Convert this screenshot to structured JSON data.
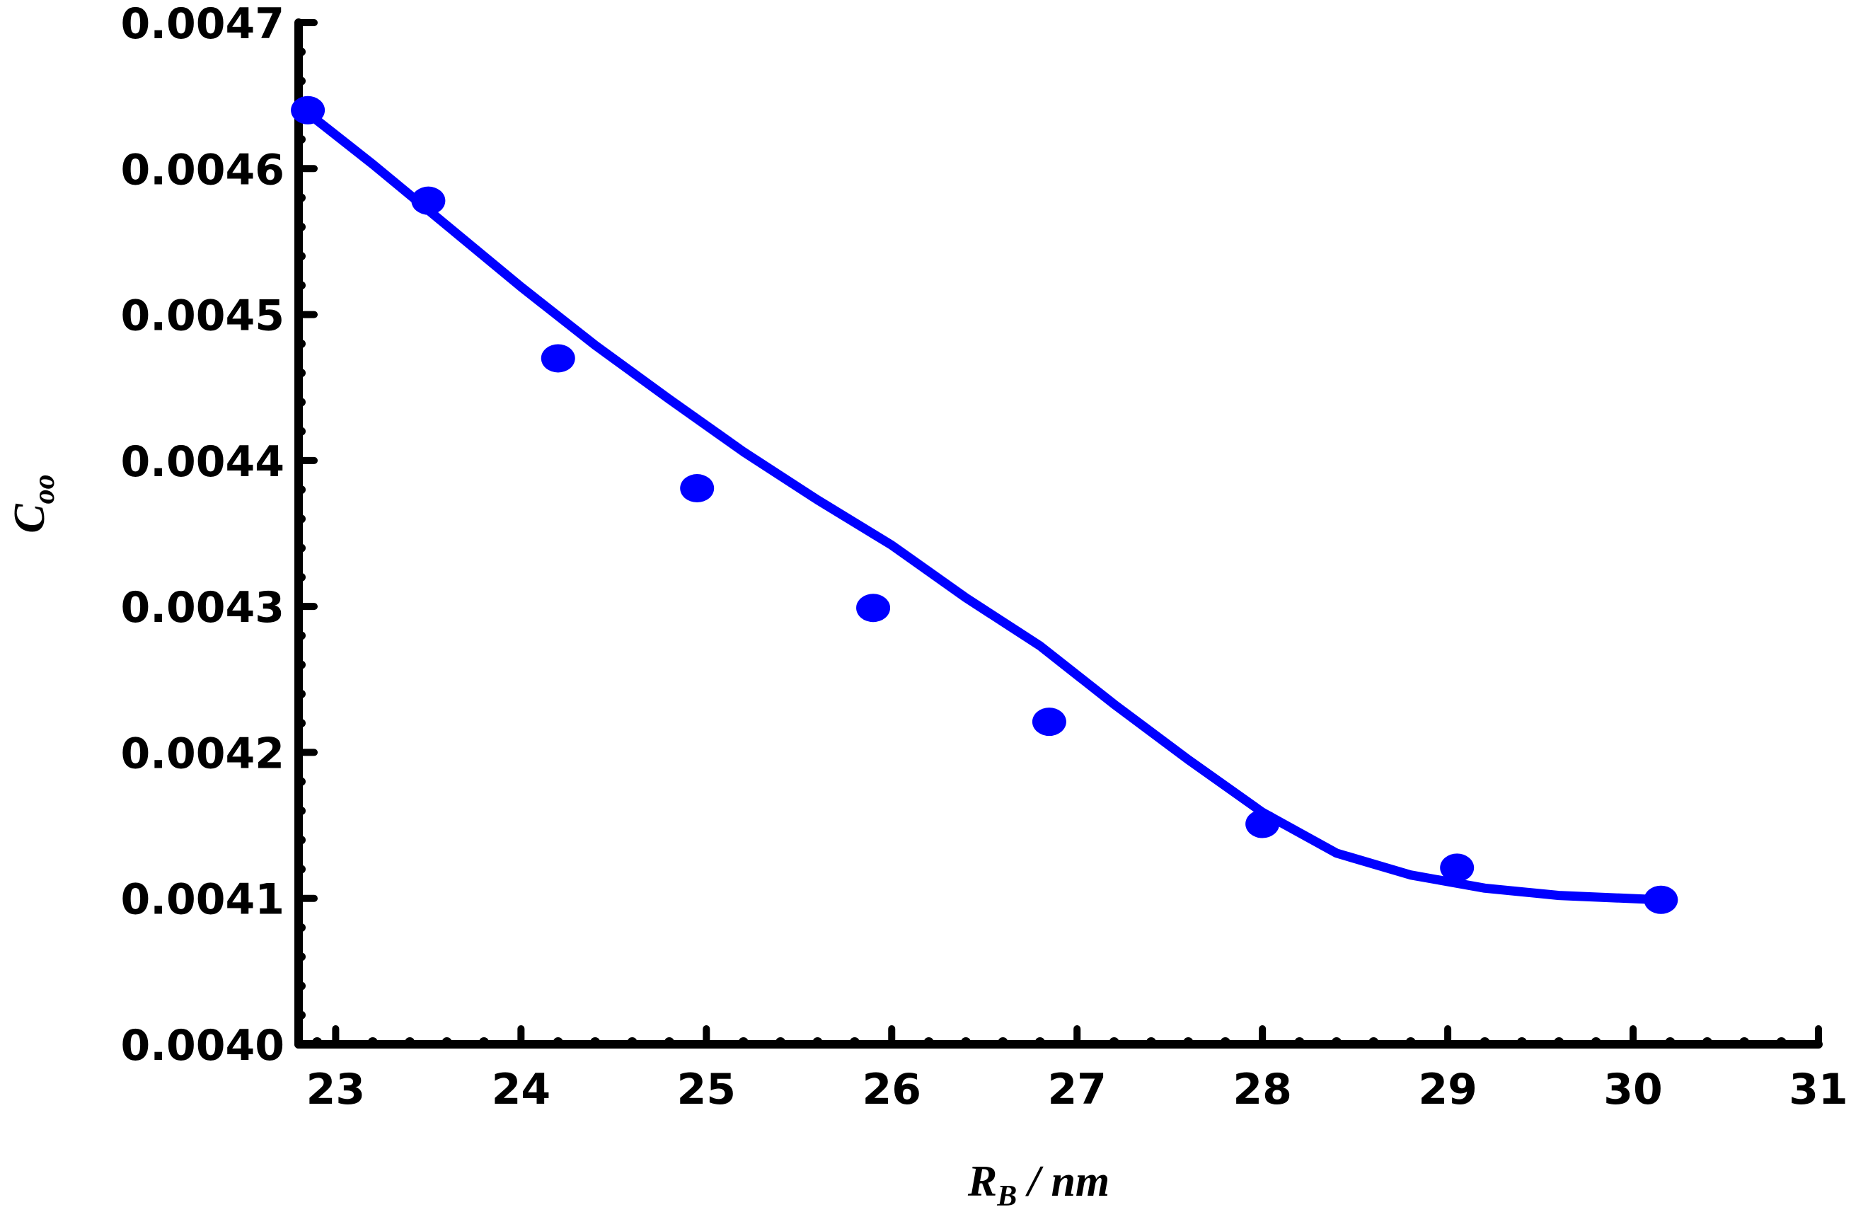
{
  "chart_data": {
    "type": "scatter",
    "title": "",
    "xlabel": {
      "symbol": "R",
      "subscript": "B",
      "unit": " / nm"
    },
    "ylabel": {
      "symbol": "C",
      "subscript": "oo"
    },
    "xlim": [
      22.8,
      31
    ],
    "ylim": [
      0.004,
      0.0047
    ],
    "xticks": [
      "23",
      "24",
      "25",
      "26",
      "27",
      "28",
      "29",
      "30",
      "31"
    ],
    "yticks": [
      "0.0040",
      "0.0041",
      "0.0042",
      "0.0043",
      "0.0044",
      "0.0045",
      "0.0046",
      "0.0047"
    ],
    "grid": false,
    "legend": "none",
    "series": [
      {
        "marker": "circle",
        "color": "#0000ff",
        "x": [
          22.85,
          23.5,
          24.2,
          24.95,
          25.9,
          26.85,
          28.0,
          29.05,
          30.15
        ],
        "y": [
          0.00464,
          0.004578,
          0.00447,
          0.004381,
          0.004299,
          0.004221,
          0.004151,
          0.004121,
          0.004099
        ]
      },
      {
        "line": "smooth-fit",
        "color": "#0000ff",
        "x": [
          22.85,
          23.2,
          23.6,
          24.0,
          24.4,
          24.8,
          25.2,
          25.6,
          26.0,
          26.4,
          26.8,
          27.2,
          27.6,
          28.0,
          28.4,
          28.8,
          29.2,
          29.6,
          30.15
        ],
        "y": [
          0.004638,
          0.004603,
          0.004561,
          0.004519,
          0.004479,
          0.004442,
          0.004406,
          0.004373,
          0.004342,
          0.004306,
          0.004273,
          0.004233,
          0.004195,
          0.004159,
          0.004131,
          0.004116,
          0.004107,
          0.004102,
          0.004099
        ]
      }
    ]
  }
}
